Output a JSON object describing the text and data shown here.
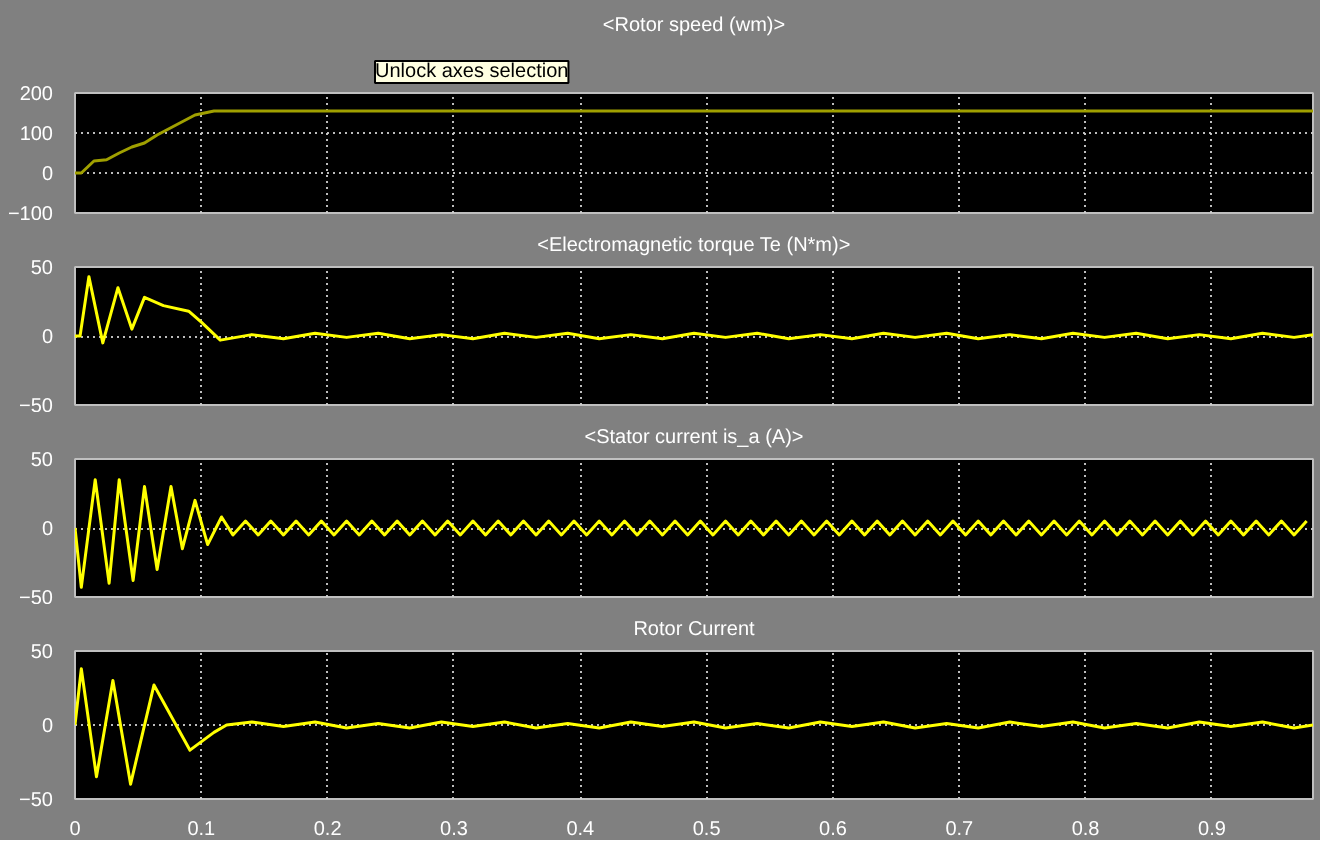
{
  "chart_data": [
    {
      "type": "line",
      "title": "<Rotor speed (wm)>",
      "annotations": [
        "Unlock axes selection"
      ],
      "xlim": [
        0,
        0.98
      ],
      "xticks": [
        0,
        0.1,
        0.2,
        0.3,
        0.4,
        0.5,
        0.6,
        0.7,
        0.8,
        0.9
      ],
      "ylim": [
        -100,
        200
      ],
      "yticks": [
        -100,
        0,
        100,
        200
      ],
      "grid": true,
      "tick_labels": "y",
      "series": [
        {
          "color": "#a0a000",
          "x": [
            0,
            0.005,
            0.015,
            0.025,
            0.035,
            0.045,
            0.055,
            0.065,
            0.08,
            0.095,
            0.11,
            0.98
          ],
          "values": [
            0,
            0,
            30,
            33,
            50,
            65,
            75,
            95,
            120,
            145,
            155,
            155
          ]
        }
      ]
    },
    {
      "type": "line",
      "title": "<Electromagnetic torque Te (N*m)>",
      "xlim": [
        0,
        0.98
      ],
      "xticks": [
        0,
        0.1,
        0.2,
        0.3,
        0.4,
        0.5,
        0.6,
        0.7,
        0.8,
        0.9
      ],
      "ylim": [
        -50,
        50
      ],
      "yticks": [
        -50,
        0,
        50
      ],
      "grid": true,
      "tick_labels": "y",
      "series": [
        {
          "color": "#ffff00",
          "x": [
            0,
            0.004,
            0.011,
            0.022,
            0.034,
            0.045,
            0.055,
            0.07,
            0.09,
            0.1,
            0.115,
            0.14,
            0.165,
            0.19,
            0.215,
            0.24,
            0.265,
            0.29,
            0.315,
            0.34,
            0.365,
            0.39,
            0.415,
            0.44,
            0.465,
            0.49,
            0.515,
            0.54,
            0.565,
            0.59,
            0.615,
            0.64,
            0.665,
            0.69,
            0.715,
            0.74,
            0.765,
            0.79,
            0.815,
            0.84,
            0.865,
            0.89,
            0.915,
            0.94,
            0.965,
            0.98
          ],
          "values": [
            0,
            0,
            43,
            -5,
            35,
            5,
            28,
            22,
            18,
            10,
            -3,
            1,
            -2,
            2,
            -1,
            2,
            -2,
            1,
            -2,
            2,
            -1,
            2,
            -2,
            1,
            -2,
            2,
            -1,
            2,
            -2,
            1,
            -2,
            2,
            -1,
            2,
            -2,
            1,
            -2,
            2,
            -1,
            2,
            -2,
            1,
            -2,
            2,
            -1,
            1
          ]
        }
      ]
    },
    {
      "type": "line",
      "title": "<Stator current is_a (A)>",
      "xlim": [
        0,
        0.98
      ],
      "xticks": [
        0,
        0.1,
        0.2,
        0.3,
        0.4,
        0.5,
        0.6,
        0.7,
        0.8,
        0.9
      ],
      "ylim": [
        -50,
        50
      ],
      "yticks": [
        -50,
        0,
        50
      ],
      "grid": true,
      "tick_labels": "y",
      "series": [
        {
          "color": "#ffff00",
          "x": [
            0,
            0.005,
            0.016,
            0.027,
            0.035,
            0.046,
            0.055,
            0.065,
            0.076,
            0.085,
            0.095,
            0.105,
            0.116,
            0.125,
            0.135,
            0.145,
            0.155,
            0.165,
            0.175,
            0.185,
            0.195,
            0.205,
            0.215,
            0.225,
            0.235,
            0.245,
            0.255,
            0.265,
            0.275,
            0.285,
            0.295,
            0.305,
            0.315,
            0.325,
            0.335,
            0.345,
            0.355,
            0.365,
            0.375,
            0.385,
            0.395,
            0.405,
            0.415,
            0.425,
            0.435,
            0.445,
            0.455,
            0.465,
            0.475,
            0.485,
            0.495,
            0.505,
            0.515,
            0.525,
            0.535,
            0.545,
            0.555,
            0.565,
            0.575,
            0.585,
            0.595,
            0.605,
            0.615,
            0.625,
            0.635,
            0.645,
            0.655,
            0.665,
            0.675,
            0.685,
            0.695,
            0.705,
            0.715,
            0.725,
            0.735,
            0.745,
            0.755,
            0.765,
            0.775,
            0.785,
            0.795,
            0.805,
            0.815,
            0.825,
            0.835,
            0.845,
            0.855,
            0.865,
            0.875,
            0.885,
            0.895,
            0.905,
            0.915,
            0.925,
            0.935,
            0.945,
            0.955,
            0.965,
            0.975
          ],
          "values": [
            0,
            -43,
            35,
            -40,
            35,
            -38,
            30,
            -30,
            30,
            -15,
            20,
            -12,
            8,
            -5,
            5,
            -5,
            5,
            -5,
            5,
            -5,
            5,
            -5,
            5,
            -5,
            5,
            -5,
            5,
            -5,
            5,
            -5,
            5,
            -5,
            5,
            -5,
            5,
            -5,
            5,
            -5,
            5,
            -5,
            5,
            -5,
            5,
            -5,
            5,
            -5,
            5,
            -5,
            5,
            -5,
            5,
            -5,
            5,
            -5,
            5,
            -5,
            5,
            -5,
            5,
            -5,
            5,
            -5,
            5,
            -5,
            5,
            -5,
            5,
            -5,
            5,
            -5,
            5,
            -5,
            5,
            -5,
            5,
            -5,
            5,
            -5,
            5,
            -5,
            5,
            -5,
            5,
            -5,
            5,
            -5,
            5,
            -5,
            5,
            -5,
            5,
            -5,
            5,
            -5,
            5,
            -5,
            5,
            -5,
            5
          ]
        }
      ]
    },
    {
      "type": "line",
      "title": "Rotor Current",
      "xlim": [
        0,
        0.98
      ],
      "xticks": [
        0,
        0.1,
        0.2,
        0.3,
        0.4,
        0.5,
        0.6,
        0.7,
        0.8,
        0.9
      ],
      "ylim": [
        -50,
        50
      ],
      "yticks": [
        -50,
        0,
        50
      ],
      "grid": true,
      "series": [
        {
          "color": "#ffff00",
          "x": [
            0,
            0.005,
            0.017,
            0.03,
            0.044,
            0.0625,
            0.091,
            0.11,
            0.12,
            0.14,
            0.165,
            0.19,
            0.215,
            0.24,
            0.265,
            0.29,
            0.315,
            0.34,
            0.365,
            0.39,
            0.415,
            0.44,
            0.465,
            0.49,
            0.515,
            0.54,
            0.565,
            0.59,
            0.615,
            0.64,
            0.665,
            0.69,
            0.715,
            0.74,
            0.765,
            0.79,
            0.815,
            0.84,
            0.865,
            0.89,
            0.915,
            0.94,
            0.965,
            0.98
          ],
          "values": [
            0,
            38,
            -35,
            30,
            -40,
            27,
            -17,
            -5,
            0,
            2,
            -1,
            2,
            -2,
            1,
            -2,
            2,
            -1,
            2,
            -2,
            1,
            -2,
            2,
            -1,
            2,
            -2,
            1,
            -2,
            2,
            -1,
            2,
            -2,
            1,
            -2,
            2,
            -1,
            2,
            -2,
            1,
            -2,
            2,
            -1,
            2,
            -2,
            0
          ]
        }
      ]
    }
  ]
}
